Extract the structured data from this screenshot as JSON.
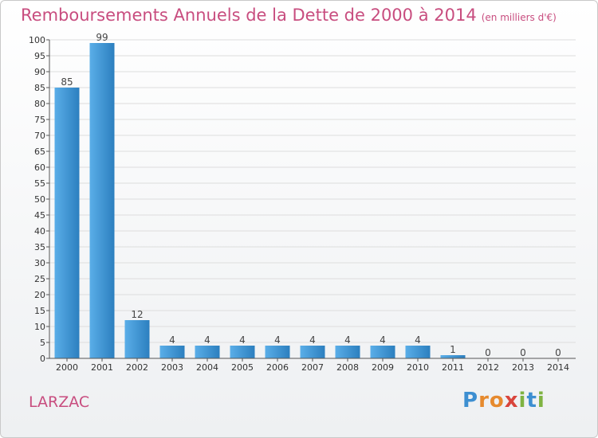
{
  "page": {
    "place_name": "LARZAC",
    "logo_letters": [
      {
        "ch": "P",
        "color": "#3d8fd1"
      },
      {
        "ch": "r",
        "color": "#e68a2e"
      },
      {
        "ch": "o",
        "color": "#e68a2e"
      },
      {
        "ch": "x",
        "color": "#d9453c"
      },
      {
        "ch": "i",
        "color": "#7fb342"
      },
      {
        "ch": "t",
        "color": "#3d8fd1"
      },
      {
        "ch": "i",
        "color": "#7fb342"
      }
    ]
  },
  "colors": {
    "bar_light": "#5aaee8",
    "bar_dark": "#2c7fbf",
    "title": "#c84d7f",
    "grid": "#dddddd"
  },
  "chart_data": {
    "type": "bar",
    "title": "Remboursements Annuels de la Dette de 2000 à 2014",
    "unit_label": "(en milliers d'€)",
    "categories": [
      "2000",
      "2001",
      "2002",
      "2003",
      "2004",
      "2005",
      "2006",
      "2007",
      "2008",
      "2009",
      "2010",
      "2011",
      "2012",
      "2013",
      "2014"
    ],
    "values": [
      85,
      99,
      12,
      4,
      4,
      4,
      4,
      4,
      4,
      4,
      4,
      1,
      0,
      0,
      0
    ],
    "ylim": [
      0,
      100
    ],
    "ytick_step": 5,
    "xlabel": "",
    "ylabel": "",
    "grid": true
  }
}
